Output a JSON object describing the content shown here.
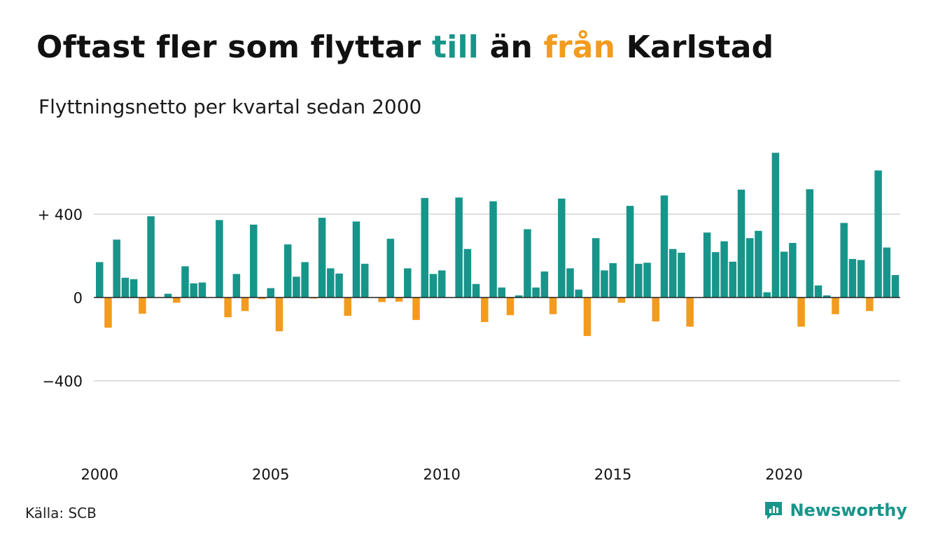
{
  "title": {
    "part1": "Oftast fler som flyttar ",
    "pos_word": "till",
    "part2": " än ",
    "neg_word": "från",
    "part3": " Karlstad"
  },
  "subtitle": "Flyttningsnetto per kvartal sedan 2000",
  "source": "Källa: SCB",
  "brand": {
    "name": "Newsworthy",
    "icon": "newsworthy-logo-icon"
  },
  "colors": {
    "positive": "#18958a",
    "negative": "#f29b1f",
    "grid": "#dedede",
    "axis": "#222222"
  },
  "chart_data": {
    "type": "bar",
    "title": "Oftast fler som flyttar till än från Karlstad",
    "subtitle": "Flyttningsnetto per kvartal sedan 2000",
    "x_start": "2000-Q1",
    "ylim": [
      -550,
      720
    ],
    "y_ticks": [
      400,
      0,
      -400
    ],
    "y_tick_labels": [
      "+ 400",
      "0",
      "−400"
    ],
    "x_ticks": [
      {
        "index": 0,
        "label": "2000"
      },
      {
        "index": 20,
        "label": "2005"
      },
      {
        "index": 40,
        "label": "2010"
      },
      {
        "index": 60,
        "label": "2015"
      },
      {
        "index": 80,
        "label": "2020"
      }
    ],
    "grid": true,
    "values": [
      170,
      -145,
      278,
      95,
      88,
      -78,
      390,
      0,
      18,
      -25,
      150,
      68,
      72,
      0,
      372,
      -95,
      113,
      -65,
      350,
      -8,
      45,
      -162,
      255,
      100,
      170,
      -5,
      383,
      140,
      115,
      -88,
      365,
      162,
      0,
      -22,
      282,
      -20,
      140,
      -108,
      478,
      113,
      130,
      0,
      480,
      233,
      65,
      -118,
      462,
      48,
      -85,
      10,
      328,
      48,
      125,
      -80,
      475,
      140,
      38,
      -185,
      285,
      130,
      165,
      -25,
      440,
      162,
      167,
      -115,
      490,
      233,
      215,
      -140,
      0,
      312,
      218,
      270,
      172,
      518,
      285,
      320,
      25,
      695,
      220,
      262,
      -140,
      520,
      58,
      10,
      -80,
      358,
      185,
      180,
      -65,
      610,
      240,
      108
    ]
  }
}
